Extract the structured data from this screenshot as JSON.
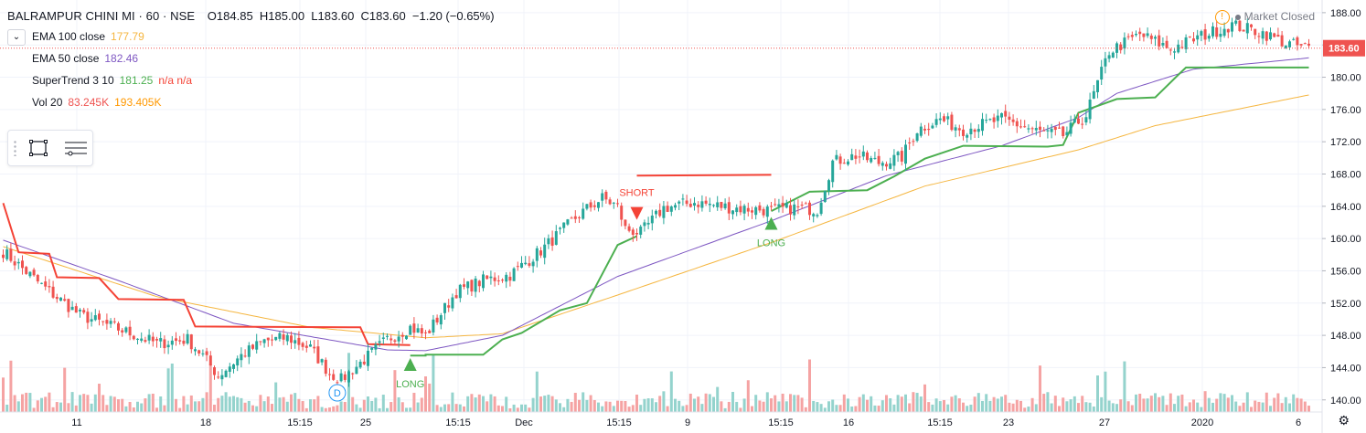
{
  "header": {
    "title": "BALRAMPUR CHINI MI · 60 · NSE",
    "o_label": "O",
    "o": "184.85",
    "h_label": "H",
    "h": "185.00",
    "l_label": "L",
    "l": "183.60",
    "c_label": "C",
    "c": "183.60",
    "change": "−1.20 (−0.65%)"
  },
  "indicators": [
    {
      "name": "EMA 100 close",
      "value": "177.79",
      "value2": "",
      "color": "#f5b640"
    },
    {
      "name": "EMA 50 close",
      "value": "182.46",
      "value2": "",
      "color": "#7e57c2"
    },
    {
      "name": "SuperTrend 3 10",
      "value": "181.25",
      "value2": "n/a n/a",
      "color": "#4caf50",
      "color2": "#f44336"
    },
    {
      "name": "Vol 20",
      "value": "83.245K",
      "value2": "193.405K",
      "color": "#ef5350",
      "color2": "#ff9800"
    }
  ],
  "market_status": "Market Closed",
  "icons": {
    "collapse": "chevron-down-icon",
    "rect_tool": "rectangle-icon",
    "list_tool": "list-icon",
    "warning": "warning-icon",
    "settings": "gear-icon"
  },
  "colors": {
    "up": "#26a69a",
    "down": "#ef5350",
    "vol_up": "#94d3cd",
    "vol_down": "#f5a3a3",
    "st_up": "#4caf50",
    "st_down": "#f44336",
    "ema50": "#7e57c2",
    "ema100": "#f5b640",
    "last_price_bg": "#ef5350",
    "grid": "#f0f3fa",
    "axis_text": "#131722"
  },
  "chart_data": {
    "type": "candlestick",
    "ylim": [
      138.5,
      189.5
    ],
    "y_ticks": [
      "188.00",
      "184.00",
      "180.00",
      "176.00",
      "172.00",
      "168.00",
      "164.00",
      "160.00",
      "156.00",
      "152.00",
      "148.00",
      "144.00",
      "140.00"
    ],
    "x_ticks": [
      "11",
      "18",
      "15:15",
      "25",
      "15:15",
      "Dec",
      "15:15",
      "9",
      "15:15",
      "16",
      "15:15",
      "23",
      "27",
      "2020",
      "6"
    ],
    "last_price": "183.60",
    "num_bars": 200,
    "close_anchors": [
      [
        0,
        158.4
      ],
      [
        10,
        154.2
      ],
      [
        20,
        150.5
      ],
      [
        30,
        148.8
      ],
      [
        40,
        147.0
      ],
      [
        48,
        147.5
      ],
      [
        52,
        145.5
      ],
      [
        56,
        143.0
      ],
      [
        62,
        145.5
      ],
      [
        68,
        147.3
      ],
      [
        74,
        147.7
      ],
      [
        80,
        146.4
      ],
      [
        85,
        143.3
      ],
      [
        88,
        142.5
      ],
      [
        94,
        145.0
      ],
      [
        100,
        147.5
      ],
      [
        106,
        149.0
      ],
      [
        110,
        148.0
      ],
      [
        118,
        153.4
      ],
      [
        125,
        154.8
      ],
      [
        132,
        155.5
      ],
      [
        140,
        158.5
      ],
      [
        150,
        163.0
      ],
      [
        156,
        165.0
      ],
      [
        160,
        164.0
      ],
      [
        162,
        161.2
      ],
      [
        166,
        160.7
      ],
      [
        172,
        163.8
      ],
      [
        180,
        164.5
      ],
      [
        190,
        163.8
      ],
      [
        200,
        163.5
      ],
      [
        206,
        163.8
      ],
      [
        212,
        163.6
      ],
      [
        216,
        169.5
      ],
      [
        222,
        170.3
      ],
      [
        228,
        169.4
      ],
      [
        234,
        170.1
      ],
      [
        238,
        173.5
      ],
      [
        244,
        174.8
      ],
      [
        250,
        173.5
      ],
      [
        260,
        174.8
      ],
      [
        270,
        173.2
      ],
      [
        276,
        172.8
      ],
      [
        282,
        175.3
      ],
      [
        288,
        183.2
      ],
      [
        296,
        185.3
      ],
      [
        304,
        183.5
      ],
      [
        312,
        185.1
      ],
      [
        320,
        186.5
      ],
      [
        328,
        185.5
      ],
      [
        334,
        184.2
      ],
      [
        340,
        183.6
      ]
    ],
    "supertrend": [
      {
        "trend": "down",
        "points": [
          [
            0,
            164.4
          ],
          [
            4,
            158.3
          ],
          [
            12,
            158.1
          ],
          [
            14,
            155.2
          ],
          [
            25,
            155.1
          ],
          [
            30,
            152.5
          ],
          [
            47,
            152.4
          ],
          [
            50,
            149.1
          ],
          [
            93,
            149.0
          ],
          [
            95,
            146.9
          ],
          [
            106,
            146.8
          ]
        ]
      },
      {
        "trend": "up",
        "points": [
          [
            106,
            145.5
          ],
          [
            110,
            145.5
          ],
          [
            110,
            145.6
          ],
          [
            125,
            145.6
          ],
          [
            130,
            147.5
          ],
          [
            135,
            148.3
          ],
          [
            145,
            151.1
          ],
          [
            152,
            152.0
          ],
          [
            160,
            159.2
          ],
          [
            165,
            160.3
          ]
        ]
      },
      {
        "trend": "down",
        "points": [
          [
            165,
            167.8
          ],
          [
            200,
            167.9
          ]
        ]
      },
      {
        "trend": "up",
        "points": [
          [
            200,
            163.4
          ],
          [
            210,
            165.8
          ],
          [
            225,
            166.0
          ],
          [
            232,
            167.7
          ],
          [
            240,
            169.9
          ],
          [
            250,
            171.5
          ],
          [
            272,
            171.4
          ],
          [
            276,
            171.6
          ],
          [
            280,
            175.6
          ],
          [
            290,
            177.3
          ],
          [
            300,
            177.5
          ],
          [
            306,
            180.3
          ],
          [
            308,
            181.2
          ],
          [
            340,
            181.2
          ]
        ]
      }
    ],
    "ema50_anchors": [
      [
        0,
        159.8
      ],
      [
        30,
        154.8
      ],
      [
        60,
        149.5
      ],
      [
        100,
        146.2
      ],
      [
        110,
        146.1
      ],
      [
        130,
        148.0
      ],
      [
        160,
        155.3
      ],
      [
        200,
        162.2
      ],
      [
        230,
        167.8
      ],
      [
        260,
        171.5
      ],
      [
        280,
        175.0
      ],
      [
        290,
        178.0
      ],
      [
        310,
        181.0
      ],
      [
        340,
        182.4
      ]
    ],
    "ema100_anchors": [
      [
        0,
        159.0
      ],
      [
        40,
        152.8
      ],
      [
        80,
        149.0
      ],
      [
        110,
        147.7
      ],
      [
        130,
        148.2
      ],
      [
        160,
        153.0
      ],
      [
        200,
        159.5
      ],
      [
        240,
        166.5
      ],
      [
        280,
        171.0
      ],
      [
        300,
        174.0
      ],
      [
        340,
        177.8
      ]
    ],
    "volume_scale_max": 600,
    "signals": [
      {
        "label": "LONG",
        "type": "long",
        "bar": 106
      },
      {
        "label": "SHORT",
        "type": "short",
        "bar": 165
      },
      {
        "label": "LONG",
        "type": "long",
        "bar": 200
      }
    ],
    "event": {
      "label": "D",
      "bar": 87
    }
  }
}
